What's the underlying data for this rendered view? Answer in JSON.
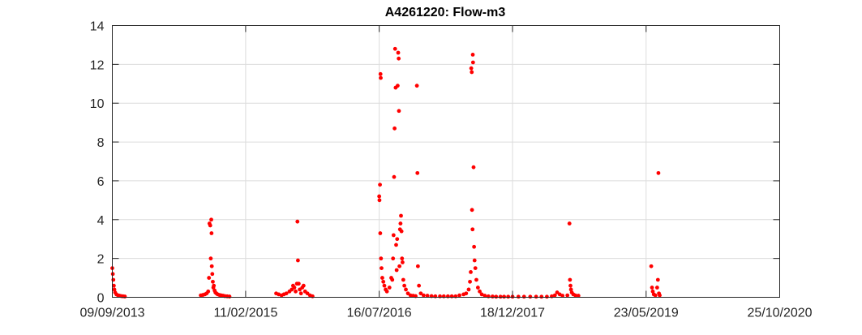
{
  "chart_data": {
    "type": "scatter",
    "title": "A4261220: Flow-m3",
    "xlabel": "",
    "ylabel": "",
    "x_axis_type": "date",
    "xlim": [
      "2013-09-09",
      "2020-10-25"
    ],
    "ylim": [
      0,
      14
    ],
    "x_ticks": [
      "2013-09-09",
      "2015-02-11",
      "2016-07-16",
      "2017-12-18",
      "2019-05-23",
      "2020-10-25"
    ],
    "x_tick_labels": [
      "09/09/2013",
      "11/02/2015",
      "16/07/2016",
      "18/12/2017",
      "23/05/2019",
      "25/10/2020"
    ],
    "y_ticks": [
      0,
      2,
      4,
      6,
      8,
      10,
      12,
      14
    ],
    "y_tick_labels": [
      "0",
      "2",
      "4",
      "6",
      "8",
      "10",
      "12",
      "14"
    ],
    "grid": true,
    "marker_color": "#ff0000",
    "series": [
      {
        "points": [
          [
            "2013-09-09",
            1.5
          ],
          [
            "2013-09-11",
            1.2
          ],
          [
            "2013-09-13",
            0.9
          ],
          [
            "2013-09-15",
            0.6
          ],
          [
            "2013-09-17",
            0.4
          ],
          [
            "2013-09-20",
            0.25
          ],
          [
            "2013-09-25",
            0.15
          ],
          [
            "2013-10-01",
            0.1
          ],
          [
            "2013-10-07",
            0.08
          ],
          [
            "2013-10-14",
            0.06
          ],
          [
            "2013-10-21",
            0.05
          ],
          [
            "2013-10-28",
            0.04
          ],
          [
            "2014-08-20",
            0.1
          ],
          [
            "2014-08-28",
            0.12
          ],
          [
            "2014-09-05",
            0.15
          ],
          [
            "2014-09-12",
            0.2
          ],
          [
            "2014-09-18",
            0.3
          ],
          [
            "2014-09-21",
            1.0
          ],
          [
            "2014-09-23",
            3.8
          ],
          [
            "2014-09-26",
            3.7
          ],
          [
            "2014-09-28",
            2.0
          ],
          [
            "2014-09-30",
            4.0
          ],
          [
            "2014-10-01",
            3.3
          ],
          [
            "2014-10-02",
            1.6
          ],
          [
            "2014-10-04",
            1.2
          ],
          [
            "2014-10-06",
            0.8
          ],
          [
            "2014-10-08",
            0.5
          ],
          [
            "2014-10-10",
            0.6
          ],
          [
            "2014-10-13",
            0.35
          ],
          [
            "2014-10-16",
            0.25
          ],
          [
            "2014-10-20",
            0.2
          ],
          [
            "2014-10-25",
            0.15
          ],
          [
            "2014-11-01",
            0.12
          ],
          [
            "2014-11-08",
            0.1
          ],
          [
            "2014-11-15",
            0.08
          ],
          [
            "2014-11-22",
            0.06
          ],
          [
            "2014-12-01",
            0.05
          ],
          [
            "2014-12-10",
            0.04
          ],
          [
            "2015-06-10",
            0.2
          ],
          [
            "2015-06-20",
            0.15
          ],
          [
            "2015-07-01",
            0.1
          ],
          [
            "2015-07-10",
            0.15
          ],
          [
            "2015-07-20",
            0.2
          ],
          [
            "2015-08-01",
            0.3
          ],
          [
            "2015-08-10",
            0.4
          ],
          [
            "2015-08-15",
            0.6
          ],
          [
            "2015-08-20",
            0.5
          ],
          [
            "2015-08-25",
            0.3
          ],
          [
            "2015-08-30",
            0.7
          ],
          [
            "2015-09-01",
            3.9
          ],
          [
            "2015-09-03",
            1.9
          ],
          [
            "2015-09-06",
            0.7
          ],
          [
            "2015-09-10",
            0.4
          ],
          [
            "2015-09-15",
            0.2
          ],
          [
            "2015-09-20",
            0.5
          ],
          [
            "2015-09-25",
            0.6
          ],
          [
            "2015-10-01",
            0.3
          ],
          [
            "2015-10-10",
            0.2
          ],
          [
            "2015-10-20",
            0.1
          ],
          [
            "2015-10-30",
            0.05
          ],
          [
            "2016-07-16",
            5.2
          ],
          [
            "2016-07-17",
            5.0
          ],
          [
            "2016-07-19",
            5.8
          ],
          [
            "2016-07-20",
            3.3
          ],
          [
            "2016-07-21",
            11.5
          ],
          [
            "2016-07-22",
            11.3
          ],
          [
            "2016-07-23",
            2.0
          ],
          [
            "2016-07-25",
            1.5
          ],
          [
            "2016-07-28",
            1.0
          ],
          [
            "2016-08-01",
            0.8
          ],
          [
            "2016-08-05",
            0.6
          ],
          [
            "2016-08-10",
            0.4
          ],
          [
            "2016-08-15",
            0.3
          ],
          [
            "2016-08-25",
            0.5
          ],
          [
            "2016-09-01",
            1.0
          ],
          [
            "2016-09-05",
            0.9
          ],
          [
            "2016-09-08",
            2.0
          ],
          [
            "2016-09-10",
            3.2
          ],
          [
            "2016-09-12",
            6.2
          ],
          [
            "2016-09-14",
            8.7
          ],
          [
            "2016-09-16",
            12.8
          ],
          [
            "2016-09-18",
            10.8
          ],
          [
            "2016-09-20",
            2.7
          ],
          [
            "2016-09-22",
            1.4
          ],
          [
            "2016-09-24",
            3.0
          ],
          [
            "2016-09-26",
            10.9
          ],
          [
            "2016-09-28",
            12.6
          ],
          [
            "2016-09-30",
            12.3
          ],
          [
            "2016-10-01",
            9.6
          ],
          [
            "2016-10-03",
            1.6
          ],
          [
            "2016-10-05",
            3.5
          ],
          [
            "2016-10-07",
            3.8
          ],
          [
            "2016-10-09",
            4.2
          ],
          [
            "2016-10-11",
            3.4
          ],
          [
            "2016-10-13",
            2.0
          ],
          [
            "2016-10-15",
            1.8
          ],
          [
            "2016-10-18",
            0.9
          ],
          [
            "2016-10-22",
            0.6
          ],
          [
            "2016-10-28",
            0.4
          ],
          [
            "2016-11-05",
            0.2
          ],
          [
            "2016-11-15",
            0.1
          ],
          [
            "2016-11-25",
            0.08
          ],
          [
            "2016-12-05",
            0.06
          ],
          [
            "2016-12-10",
            10.9
          ],
          [
            "2016-12-12",
            6.4
          ],
          [
            "2016-12-14",
            1.6
          ],
          [
            "2016-12-18",
            0.6
          ],
          [
            "2016-12-25",
            0.2
          ],
          [
            "2017-01-05",
            0.1
          ],
          [
            "2017-01-20",
            0.08
          ],
          [
            "2017-02-05",
            0.06
          ],
          [
            "2017-02-20",
            0.05
          ],
          [
            "2017-03-10",
            0.05
          ],
          [
            "2017-03-25",
            0.05
          ],
          [
            "2017-04-10",
            0.05
          ],
          [
            "2017-04-25",
            0.05
          ],
          [
            "2017-05-10",
            0.05
          ],
          [
            "2017-05-25",
            0.1
          ],
          [
            "2017-06-10",
            0.15
          ],
          [
            "2017-06-20",
            0.2
          ],
          [
            "2017-06-30",
            0.4
          ],
          [
            "2017-07-05",
            0.8
          ],
          [
            "2017-07-08",
            1.3
          ],
          [
            "2017-07-10",
            11.8
          ],
          [
            "2017-07-12",
            11.6
          ],
          [
            "2017-07-13",
            4.5
          ],
          [
            "2017-07-15",
            3.5
          ],
          [
            "2017-07-16",
            12.5
          ],
          [
            "2017-07-17",
            12.1
          ],
          [
            "2017-07-19",
            6.7
          ],
          [
            "2017-07-21",
            2.6
          ],
          [
            "2017-07-23",
            1.9
          ],
          [
            "2017-07-26",
            1.5
          ],
          [
            "2017-07-30",
            0.9
          ],
          [
            "2017-08-05",
            0.5
          ],
          [
            "2017-08-12",
            0.3
          ],
          [
            "2017-08-20",
            0.15
          ],
          [
            "2017-09-01",
            0.08
          ],
          [
            "2017-09-15",
            0.05
          ],
          [
            "2017-10-01",
            0.04
          ],
          [
            "2017-10-15",
            0.03
          ],
          [
            "2017-11-01",
            0.03
          ],
          [
            "2017-11-15",
            0.03
          ],
          [
            "2017-12-01",
            0.03
          ],
          [
            "2017-12-18",
            0.03
          ],
          [
            "2018-01-10",
            0.03
          ],
          [
            "2018-02-01",
            0.03
          ],
          [
            "2018-02-25",
            0.03
          ],
          [
            "2018-03-20",
            0.03
          ],
          [
            "2018-04-10",
            0.03
          ],
          [
            "2018-05-01",
            0.03
          ],
          [
            "2018-05-20",
            0.05
          ],
          [
            "2018-06-01",
            0.1
          ],
          [
            "2018-06-10",
            0.25
          ],
          [
            "2018-06-20",
            0.15
          ],
          [
            "2018-07-01",
            0.08
          ],
          [
            "2018-07-20",
            0.1
          ],
          [
            "2018-07-28",
            3.8
          ],
          [
            "2018-07-30",
            0.9
          ],
          [
            "2018-08-01",
            0.6
          ],
          [
            "2018-08-03",
            0.4
          ],
          [
            "2018-08-06",
            0.25
          ],
          [
            "2018-08-12",
            0.15
          ],
          [
            "2018-08-20",
            0.1
          ],
          [
            "2018-09-01",
            0.08
          ],
          [
            "2019-06-12",
            1.6
          ],
          [
            "2019-06-15",
            0.5
          ],
          [
            "2019-06-18",
            0.3
          ],
          [
            "2019-06-22",
            0.15
          ],
          [
            "2019-06-28",
            0.1
          ],
          [
            "2019-07-05",
            0.5
          ],
          [
            "2019-07-08",
            0.9
          ],
          [
            "2019-07-10",
            6.4
          ],
          [
            "2019-07-12",
            0.2
          ],
          [
            "2019-07-15",
            0.1
          ]
        ]
      }
    ]
  }
}
